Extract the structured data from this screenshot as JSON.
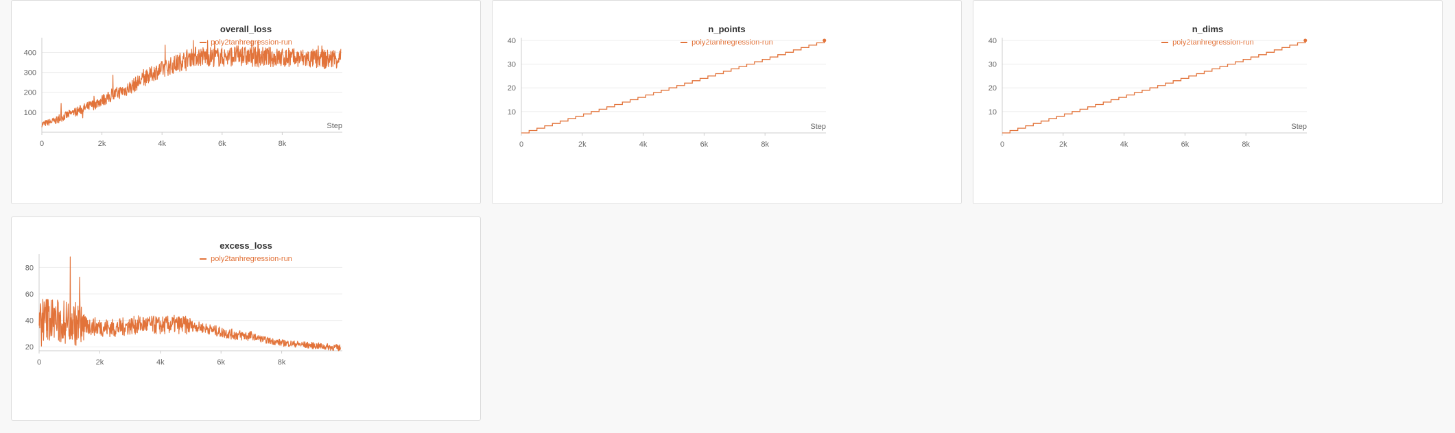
{
  "colors": {
    "series": "#e2733a",
    "grid": "#ececec",
    "axis": "#cccccc"
  },
  "chart_data": [
    {
      "type": "line",
      "title": "overall_loss",
      "xlabel": "Step",
      "ylabel": "",
      "xlim": [
        0,
        10000
      ],
      "ylim": [
        0,
        460
      ],
      "x_ticks": [
        0,
        2000,
        4000,
        6000,
        8000
      ],
      "x_tick_labels": [
        "0",
        "2k",
        "4k",
        "6k",
        "8k"
      ],
      "y_ticks": [
        100,
        200,
        300,
        400
      ],
      "y_tick_labels": [
        "100",
        "200",
        "300",
        "400"
      ],
      "grid": true,
      "legend_position": "top-center",
      "series": [
        {
          "name": "poly2tanhregression-run",
          "x": [
            0,
            250,
            500,
            750,
            1000,
            1250,
            1500,
            1750,
            2000,
            2250,
            2500,
            2750,
            3000,
            3250,
            3500,
            3750,
            4000,
            4250,
            4500,
            4750,
            5000,
            5500,
            6000,
            6500,
            7000,
            7500,
            8000,
            8500,
            9000,
            9500,
            10000
          ],
          "y": [
            40,
            50,
            60,
            80,
            95,
            110,
            125,
            140,
            160,
            175,
            195,
            210,
            230,
            255,
            275,
            300,
            315,
            330,
            345,
            365,
            380,
            380,
            375,
            385,
            375,
            378,
            372,
            370,
            368,
            365,
            375
          ]
        }
      ]
    },
    {
      "type": "line",
      "title": "n_points",
      "xlabel": "Step",
      "ylabel": "",
      "xlim": [
        0,
        10000
      ],
      "ylim": [
        1,
        40
      ],
      "x_ticks": [
        0,
        2000,
        4000,
        6000,
        8000
      ],
      "x_tick_labels": [
        "0",
        "2k",
        "4k",
        "6k",
        "8k"
      ],
      "y_ticks": [
        10,
        20,
        30,
        40
      ],
      "y_tick_labels": [
        "10",
        "20",
        "30",
        "40"
      ],
      "grid": true,
      "legend_position": "top-center",
      "series": [
        {
          "name": "poly2tanhregression-run",
          "step_size": 250,
          "x": [
            0,
            10000
          ],
          "y": [
            1,
            40
          ]
        }
      ]
    },
    {
      "type": "line",
      "title": "n_dims",
      "xlabel": "Step",
      "ylabel": "",
      "xlim": [
        0,
        10000
      ],
      "ylim": [
        1,
        40
      ],
      "x_ticks": [
        0,
        2000,
        4000,
        6000,
        8000
      ],
      "x_tick_labels": [
        "0",
        "2k",
        "4k",
        "6k",
        "8k"
      ],
      "y_ticks": [
        10,
        20,
        30,
        40
      ],
      "y_tick_labels": [
        "10",
        "20",
        "30",
        "40"
      ],
      "grid": true,
      "legend_position": "top-center",
      "series": [
        {
          "name": "poly2tanhregression-run",
          "step_size": 250,
          "x": [
            0,
            10000
          ],
          "y": [
            1,
            40
          ]
        }
      ]
    },
    {
      "type": "line",
      "title": "excess_loss",
      "xlabel": "",
      "ylabel": "",
      "xlim": [
        0,
        10000
      ],
      "ylim": [
        17,
        88
      ],
      "x_ticks": [
        0,
        2000,
        4000,
        6000,
        8000
      ],
      "x_tick_labels": [
        "0",
        "2k",
        "4k",
        "6k",
        "8k"
      ],
      "y_ticks": [
        20,
        40,
        60,
        80
      ],
      "y_tick_labels": [
        "20",
        "40",
        "60",
        "80"
      ],
      "grid": true,
      "legend_position": "top-center",
      "series": [
        {
          "name": "poly2tanhregression-run",
          "x": [
            0,
            250,
            500,
            750,
            1000,
            1250,
            1500,
            2000,
            2500,
            3000,
            3500,
            4000,
            4500,
            5000,
            5500,
            6000,
            6500,
            7000,
            7500,
            8000,
            8500,
            9000,
            9500,
            10000
          ],
          "y": [
            35,
            42,
            40,
            38,
            40,
            37,
            36,
            35,
            34,
            36,
            37,
            36,
            37,
            36,
            34,
            31,
            29,
            28,
            25,
            23,
            22,
            21,
            20,
            19
          ]
        }
      ]
    }
  ]
}
